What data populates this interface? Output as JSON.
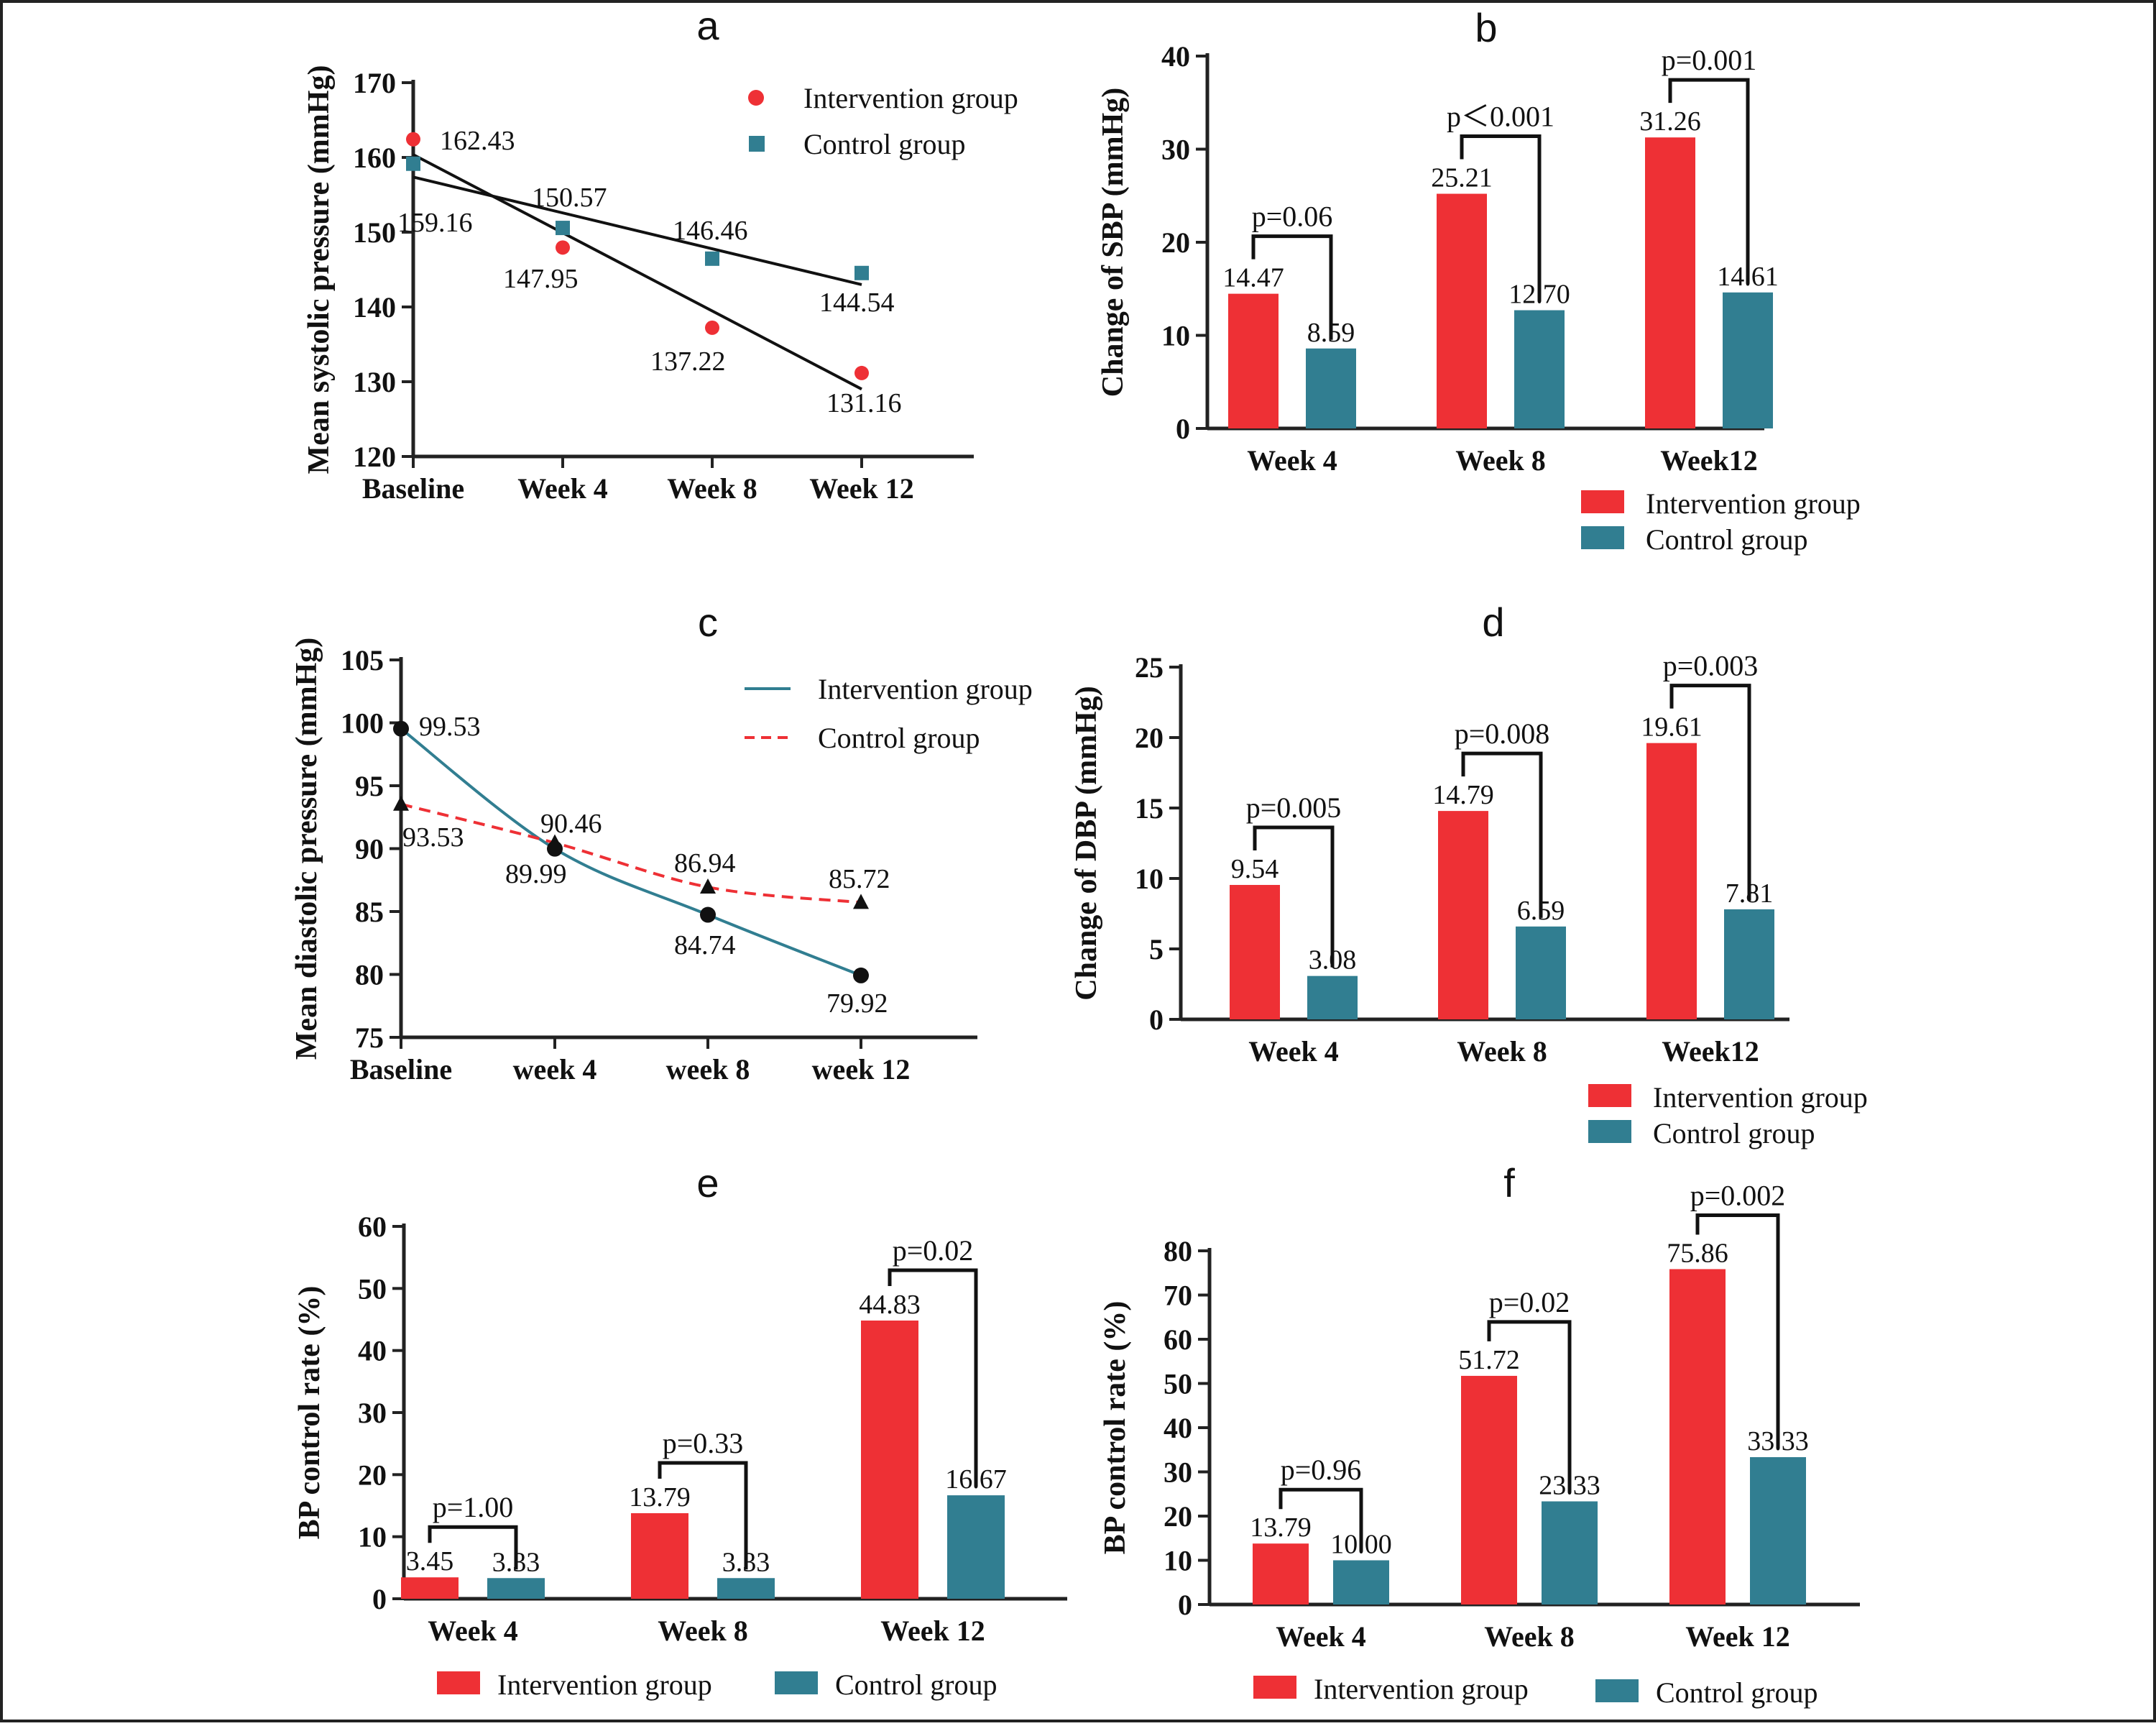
{
  "colors": {
    "intervention": "#ee3035",
    "control": "#317e91",
    "text": "#111111",
    "frame": "#222222"
  },
  "chart_data": [
    {
      "panel": "a",
      "type": "scatter",
      "trendlines": true,
      "categories": [
        "Baseline",
        "Week 4",
        "Week 8",
        "Week 12"
      ],
      "ylabel": "Mean systolic pressure (mmHg)",
      "ylim": [
        120,
        170
      ],
      "yticks": [
        120,
        130,
        140,
        150,
        160,
        170
      ],
      "legend_position": "top-right",
      "series": [
        {
          "name": "Intervention group",
          "marker": "circle",
          "values": [
            162.43,
            147.95,
            137.22,
            131.16
          ],
          "labels": [
            "162.43",
            "147.95",
            "137.22",
            "131.16"
          ]
        },
        {
          "name": "Control group",
          "marker": "square",
          "values": [
            159.16,
            150.57,
            146.46,
            144.54
          ],
          "labels": [
            "159.16",
            "150.57",
            "146.46",
            "144.54"
          ]
        }
      ]
    },
    {
      "panel": "b",
      "type": "bar",
      "categories": [
        "Week 4",
        "Week 8",
        "Week12"
      ],
      "ylabel": "Change of SBP (mmHg)",
      "ylim": [
        0,
        40
      ],
      "yticks": [
        0,
        10,
        20,
        30,
        40
      ],
      "legend_position": "bottom-right",
      "series": [
        {
          "name": "Intervention group",
          "values": [
            14.47,
            25.21,
            31.26
          ],
          "labels": [
            "14.47",
            "25.21",
            "31.26"
          ]
        },
        {
          "name": "Control group",
          "values": [
            8.59,
            12.7,
            14.61
          ],
          "labels": [
            "8.59",
            "12.70",
            "14.61"
          ]
        }
      ],
      "pvalues": [
        "p=0.06",
        "p＜0.001",
        "p=0.001"
      ]
    },
    {
      "panel": "c",
      "type": "line",
      "categories": [
        "Baseline",
        "week 4",
        "week 8",
        "week 12"
      ],
      "ylabel": "Mean diastolic pressure (mmHg)",
      "ylim": [
        75,
        105
      ],
      "yticks": [
        75,
        80,
        85,
        90,
        95,
        100,
        105
      ],
      "legend_position": "top-right",
      "series": [
        {
          "name": "Intervention group",
          "style": "solid",
          "marker": "circle",
          "values": [
            99.53,
            89.99,
            84.74,
            79.92
          ],
          "labels": [
            "99.53",
            "89.99",
            "84.74",
            "79.92"
          ]
        },
        {
          "name": "Control group",
          "style": "dashed",
          "marker": "triangle",
          "values": [
            93.53,
            90.46,
            86.94,
            85.72
          ],
          "labels": [
            "93.53",
            "90.46",
            "86.94",
            "85.72"
          ]
        }
      ]
    },
    {
      "panel": "d",
      "type": "bar",
      "categories": [
        "Week 4",
        "Week 8",
        "Week12"
      ],
      "ylabel": "Change of DBP (mmHg)",
      "ylim": [
        0,
        25
      ],
      "yticks": [
        0,
        5,
        10,
        15,
        20,
        25
      ],
      "legend_position": "bottom-right",
      "series": [
        {
          "name": "Intervention group",
          "values": [
            9.54,
            14.79,
            19.61
          ],
          "labels": [
            "9.54",
            "14.79",
            "19.61"
          ]
        },
        {
          "name": "Control group",
          "values": [
            3.08,
            6.59,
            7.81
          ],
          "labels": [
            "3.08",
            "6.59",
            "7.81"
          ]
        }
      ],
      "pvalues": [
        "p=0.005",
        "p=0.008",
        "p=0.003"
      ]
    },
    {
      "panel": "e",
      "type": "bar",
      "categories": [
        "Week 4",
        "Week 8",
        "Week 12"
      ],
      "ylabel": "BP control rate (%)",
      "ylim": [
        0,
        60
      ],
      "yticks": [
        0,
        10,
        20,
        30,
        40,
        50,
        60
      ],
      "legend_position": "bottom",
      "series": [
        {
          "name": "Intervention group",
          "values": [
            3.45,
            13.79,
            44.83
          ],
          "labels": [
            "3.45",
            "13.79",
            "44.83"
          ]
        },
        {
          "name": "Control group",
          "values": [
            3.33,
            3.33,
            16.67
          ],
          "labels": [
            "3.33",
            "3.33",
            "16.67"
          ]
        }
      ],
      "pvalues": [
        "p=1.00",
        "p=0.33",
        "p=0.02"
      ]
    },
    {
      "panel": "f",
      "type": "bar",
      "categories": [
        "Week 4",
        "Week 8",
        "Week 12"
      ],
      "ylabel": "BP control rate (%)",
      "ylim": [
        0,
        80
      ],
      "yticks": [
        0,
        10,
        20,
        30,
        40,
        50,
        60,
        70,
        80
      ],
      "legend_position": "bottom",
      "series": [
        {
          "name": "Intervention group",
          "values": [
            13.79,
            51.72,
            75.86
          ],
          "labels": [
            "13.79",
            "51.72",
            "75.86"
          ]
        },
        {
          "name": "Control group",
          "values": [
            10.0,
            23.33,
            33.33
          ],
          "labels": [
            "10.00",
            "23.33",
            "33.33"
          ]
        }
      ],
      "pvalues": [
        "p=0.96",
        "p=0.02",
        "p=0.002"
      ]
    }
  ]
}
